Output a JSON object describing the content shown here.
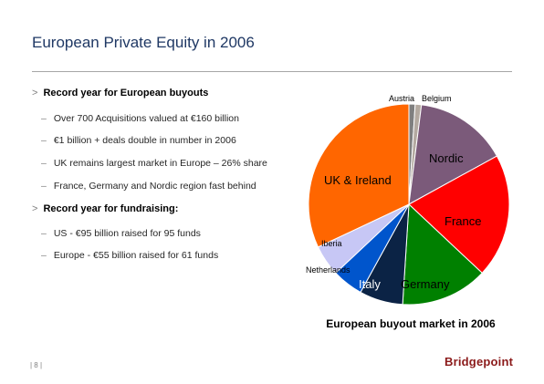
{
  "slide": {
    "title": "European Private Equity in 2006",
    "caption": "European buyout market in 2006",
    "page_number": "| 8 |",
    "logo_text": "Bridgepoint"
  },
  "bullets": {
    "b1": "Record year for European buyouts",
    "b1_sub": [
      "Over 700 Acquisitions valued at €160 billion",
      "€1 billion + deals double in number in 2006",
      "UK remains largest market in Europe – 26% share",
      "France, Germany and Nordic region fast behind"
    ],
    "b2": "Record year for fundraising:",
    "b2_sub": [
      "US - €95 billion raised for 95 funds",
      "Europe - €55 billion raised for 61 funds"
    ],
    "marker": ">",
    "dash": "–"
  },
  "chart_data": {
    "type": "pie",
    "title": "European buyout market in 2006",
    "start": "12 o'clock, clockwise",
    "slices": [
      {
        "label": "Austria",
        "value": 1,
        "color": "#7f7f7f"
      },
      {
        "label": "Belgium",
        "value": 1,
        "color": "#b3a9a0"
      },
      {
        "label": "Nordic",
        "value": 15,
        "color": "#7b5a7a"
      },
      {
        "label": "France",
        "value": 20,
        "color": "#ff0000"
      },
      {
        "label": "Germany",
        "value": 14,
        "color": "#008000"
      },
      {
        "label": "Italy",
        "value": 7,
        "color": "#0b2345"
      },
      {
        "label": "Netherlands",
        "value": 5,
        "color": "#0055cc"
      },
      {
        "label": "Iberia",
        "value": 5,
        "color": "#c7c7f5"
      },
      {
        "label": "UK & Ireland",
        "value": 32,
        "color": "#ff6600"
      }
    ]
  }
}
